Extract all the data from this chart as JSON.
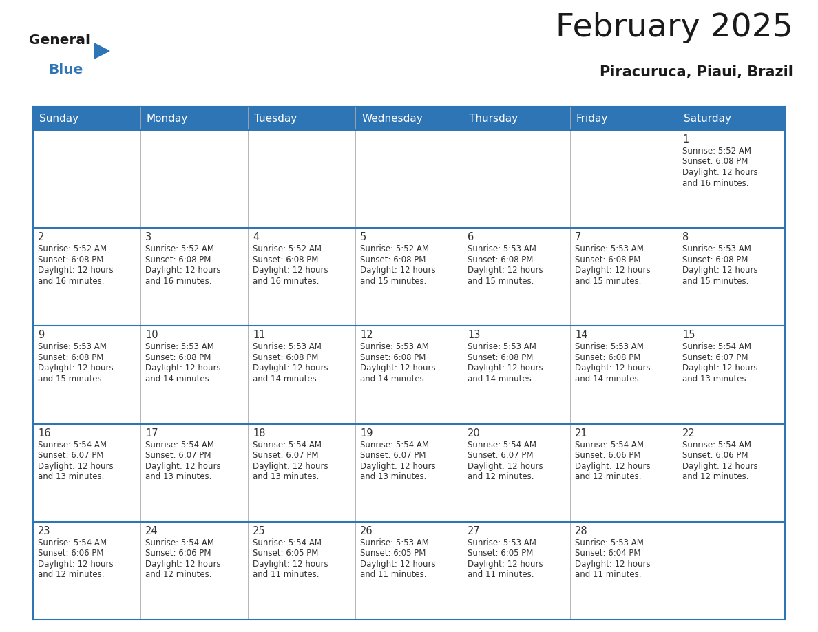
{
  "title": "February 2025",
  "subtitle": "Piracuruca, Piaui, Brazil",
  "header_bg_color": "#2e75b6",
  "header_text_color": "#ffffff",
  "border_color": "#2e75b6",
  "day_names": [
    "Sunday",
    "Monday",
    "Tuesday",
    "Wednesday",
    "Thursday",
    "Friday",
    "Saturday"
  ],
  "calendar_data": [
    [
      null,
      null,
      null,
      null,
      null,
      null,
      {
        "day": 1,
        "sunrise": "5:52 AM",
        "sunset": "6:08 PM",
        "daylight": "12 hours\nand 16 minutes."
      }
    ],
    [
      {
        "day": 2,
        "sunrise": "5:52 AM",
        "sunset": "6:08 PM",
        "daylight": "12 hours\nand 16 minutes."
      },
      {
        "day": 3,
        "sunrise": "5:52 AM",
        "sunset": "6:08 PM",
        "daylight": "12 hours\nand 16 minutes."
      },
      {
        "day": 4,
        "sunrise": "5:52 AM",
        "sunset": "6:08 PM",
        "daylight": "12 hours\nand 16 minutes."
      },
      {
        "day": 5,
        "sunrise": "5:52 AM",
        "sunset": "6:08 PM",
        "daylight": "12 hours\nand 15 minutes."
      },
      {
        "day": 6,
        "sunrise": "5:53 AM",
        "sunset": "6:08 PM",
        "daylight": "12 hours\nand 15 minutes."
      },
      {
        "day": 7,
        "sunrise": "5:53 AM",
        "sunset": "6:08 PM",
        "daylight": "12 hours\nand 15 minutes."
      },
      {
        "day": 8,
        "sunrise": "5:53 AM",
        "sunset": "6:08 PM",
        "daylight": "12 hours\nand 15 minutes."
      }
    ],
    [
      {
        "day": 9,
        "sunrise": "5:53 AM",
        "sunset": "6:08 PM",
        "daylight": "12 hours\nand 15 minutes."
      },
      {
        "day": 10,
        "sunrise": "5:53 AM",
        "sunset": "6:08 PM",
        "daylight": "12 hours\nand 14 minutes."
      },
      {
        "day": 11,
        "sunrise": "5:53 AM",
        "sunset": "6:08 PM",
        "daylight": "12 hours\nand 14 minutes."
      },
      {
        "day": 12,
        "sunrise": "5:53 AM",
        "sunset": "6:08 PM",
        "daylight": "12 hours\nand 14 minutes."
      },
      {
        "day": 13,
        "sunrise": "5:53 AM",
        "sunset": "6:08 PM",
        "daylight": "12 hours\nand 14 minutes."
      },
      {
        "day": 14,
        "sunrise": "5:53 AM",
        "sunset": "6:08 PM",
        "daylight": "12 hours\nand 14 minutes."
      },
      {
        "day": 15,
        "sunrise": "5:54 AM",
        "sunset": "6:07 PM",
        "daylight": "12 hours\nand 13 minutes."
      }
    ],
    [
      {
        "day": 16,
        "sunrise": "5:54 AM",
        "sunset": "6:07 PM",
        "daylight": "12 hours\nand 13 minutes."
      },
      {
        "day": 17,
        "sunrise": "5:54 AM",
        "sunset": "6:07 PM",
        "daylight": "12 hours\nand 13 minutes."
      },
      {
        "day": 18,
        "sunrise": "5:54 AM",
        "sunset": "6:07 PM",
        "daylight": "12 hours\nand 13 minutes."
      },
      {
        "day": 19,
        "sunrise": "5:54 AM",
        "sunset": "6:07 PM",
        "daylight": "12 hours\nand 13 minutes."
      },
      {
        "day": 20,
        "sunrise": "5:54 AM",
        "sunset": "6:07 PM",
        "daylight": "12 hours\nand 12 minutes."
      },
      {
        "day": 21,
        "sunrise": "5:54 AM",
        "sunset": "6:06 PM",
        "daylight": "12 hours\nand 12 minutes."
      },
      {
        "day": 22,
        "sunrise": "5:54 AM",
        "sunset": "6:06 PM",
        "daylight": "12 hours\nand 12 minutes."
      }
    ],
    [
      {
        "day": 23,
        "sunrise": "5:54 AM",
        "sunset": "6:06 PM",
        "daylight": "12 hours\nand 12 minutes."
      },
      {
        "day": 24,
        "sunrise": "5:54 AM",
        "sunset": "6:06 PM",
        "daylight": "12 hours\nand 12 minutes."
      },
      {
        "day": 25,
        "sunrise": "5:54 AM",
        "sunset": "6:05 PM",
        "daylight": "12 hours\nand 11 minutes."
      },
      {
        "day": 26,
        "sunrise": "5:53 AM",
        "sunset": "6:05 PM",
        "daylight": "12 hours\nand 11 minutes."
      },
      {
        "day": 27,
        "sunrise": "5:53 AM",
        "sunset": "6:05 PM",
        "daylight": "12 hours\nand 11 minutes."
      },
      {
        "day": 28,
        "sunrise": "5:53 AM",
        "sunset": "6:04 PM",
        "daylight": "12 hours\nand 11 minutes."
      },
      null
    ]
  ],
  "bg_color": "#ffffff",
  "text_color_cell": "#333333",
  "logo_general_color": "#1a1a1a",
  "logo_blue_color": "#2e75b6",
  "logo_triangle_color": "#2e75b6",
  "title_color": "#1a1a1a",
  "subtitle_color": "#1a1a1a"
}
